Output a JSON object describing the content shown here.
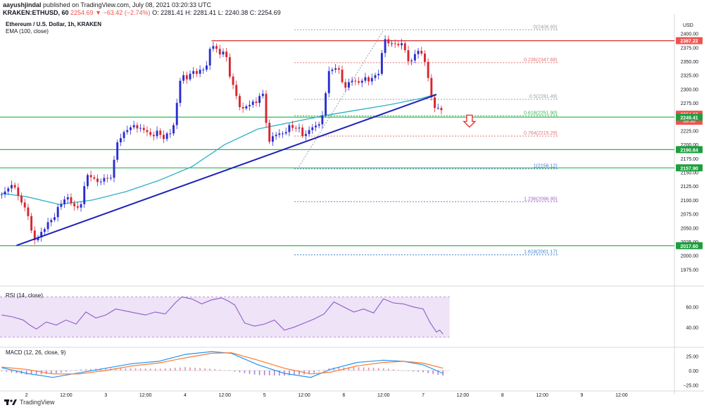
{
  "header": {
    "author": "aayushjindal",
    "published_text": "published on TradingView.com, July 08, 2021 03:20:33 UTC",
    "symbol": "KRAKEN:ETHUSD, 60",
    "price": "2254.69",
    "change": "▼ −63.42 (−2.74%)",
    "o": "O: 2281.41",
    "h": "H: 2281.41",
    "l": "L: 2240.38",
    "c": "C: 2254.69"
  },
  "chart_data": [
    {
      "type": "candlestick",
      "title": "Ethereum / U.S. Dollar, 1h, KRAKEN",
      "indicator_label": "EMA (100, close)",
      "y_unit": "USD",
      "ylim": [
        1950,
        2425
      ],
      "yticks": [
        1975,
        2000,
        2025,
        2050,
        2075,
        2100,
        2125,
        2150,
        2175,
        2200,
        2225,
        2250,
        2275,
        2300,
        2325,
        2350,
        2375,
        2400
      ],
      "x_ticks": [
        "2",
        "12:00",
        "3",
        "12:00",
        "4",
        "12:00",
        "5",
        "12:00",
        "6",
        "12:00",
        "7",
        "12:00",
        "8",
        "12:00",
        "9",
        "12:00"
      ],
      "x_tick_hours": [
        0,
        12,
        24,
        36,
        48,
        60,
        72,
        84,
        96,
        108,
        120,
        132,
        144,
        156,
        168,
        180
      ],
      "x_range_hours": [
        -8,
        196
      ],
      "price_path": [
        [
          -7.5,
          2110
        ],
        [
          -6,
          2118
        ],
        [
          -4,
          2130
        ],
        [
          -2,
          2100
        ],
        [
          0,
          2082
        ],
        [
          1,
          2060
        ],
        [
          2,
          2030
        ],
        [
          3,
          2025
        ],
        [
          4,
          2040
        ],
        [
          6,
          2050
        ],
        [
          7,
          2070
        ],
        [
          8,
          2058
        ],
        [
          9,
          2080
        ],
        [
          10,
          2095
        ],
        [
          11,
          2090
        ],
        [
          12,
          2112
        ],
        [
          13,
          2098
        ],
        [
          14,
          2090
        ],
        [
          16,
          2085
        ],
        [
          17,
          2100
        ],
        [
          18,
          2150
        ],
        [
          19,
          2140
        ],
        [
          20,
          2142
        ],
        [
          21,
          2135
        ],
        [
          22,
          2130
        ],
        [
          24,
          2143
        ],
        [
          25,
          2135
        ],
        [
          26,
          2145
        ],
        [
          27,
          2200
        ],
        [
          28,
          2208
        ],
        [
          29,
          2215
        ],
        [
          30,
          2230
        ],
        [
          31,
          2222
        ],
        [
          32,
          2240
        ],
        [
          33,
          2230
        ],
        [
          34,
          2228
        ],
        [
          35,
          2232
        ],
        [
          36,
          2220
        ],
        [
          37,
          2225
        ],
        [
          38,
          2210
        ],
        [
          40,
          2230
        ],
        [
          41,
          2205
        ],
        [
          43,
          2225
        ],
        [
          44,
          2215
        ],
        [
          45,
          2255
        ],
        [
          46,
          2295
        ],
        [
          47,
          2335
        ],
        [
          48,
          2315
        ],
        [
          49,
          2320
        ],
        [
          50,
          2335
        ],
        [
          52,
          2325
        ],
        [
          53,
          2345
        ],
        [
          54,
          2325
        ],
        [
          55,
          2360
        ],
        [
          56,
          2385
        ],
        [
          57,
          2370
        ],
        [
          58,
          2375
        ],
        [
          59,
          2350
        ],
        [
          60,
          2385
        ],
        [
          61,
          2330
        ],
        [
          62,
          2315
        ],
        [
          63,
          2300
        ],
        [
          64,
          2275
        ],
        [
          65,
          2260
        ],
        [
          66,
          2270
        ],
        [
          67,
          2268
        ],
        [
          68,
          2275
        ],
        [
          69,
          2280
        ],
        [
          70,
          2270
        ],
        [
          71,
          2305
        ],
        [
          72,
          2278
        ],
        [
          73,
          2200
        ],
        [
          74,
          2210
        ],
        [
          75,
          2220
        ],
        [
          76,
          2215
        ],
        [
          77,
          2225
        ],
        [
          78,
          2215
        ],
        [
          79,
          2230
        ],
        [
          80,
          2240
        ],
        [
          81,
          2220
        ],
        [
          82,
          2238
        ],
        [
          84,
          2208
        ],
        [
          85,
          2230
        ],
        [
          86,
          2222
        ],
        [
          87,
          2240
        ],
        [
          88,
          2228
        ],
        [
          89,
          2245
        ],
        [
          90,
          2260
        ],
        [
          91,
          2325
        ],
        [
          92,
          2340
        ],
        [
          93,
          2330
        ],
        [
          94,
          2345
        ],
        [
          95,
          2325
        ],
        [
          96,
          2300
        ],
        [
          97,
          2305
        ],
        [
          98,
          2320
        ],
        [
          99,
          2310
        ],
        [
          100,
          2318
        ],
        [
          101,
          2305
        ],
        [
          102,
          2325
        ],
        [
          104,
          2310
        ],
        [
          105,
          2330
        ],
        [
          106,
          2320
        ],
        [
          107,
          2335
        ],
        [
          108,
          2395
        ],
        [
          109,
          2385
        ],
        [
          110,
          2380
        ],
        [
          111,
          2385
        ],
        [
          112,
          2378
        ],
        [
          113,
          2380
        ],
        [
          114,
          2385
        ],
        [
          115,
          2355
        ],
        [
          116,
          2345
        ],
        [
          117,
          2358
        ],
        [
          118,
          2368
        ],
        [
          119,
          2370
        ],
        [
          120,
          2358
        ],
        [
          121,
          2340
        ],
        [
          122,
          2300
        ],
        [
          123,
          2270
        ],
        [
          124,
          2262
        ],
        [
          125,
          2270
        ],
        [
          126,
          2254
        ]
      ],
      "ema_path": [
        [
          -7.5,
          2112
        ],
        [
          0,
          2106
        ],
        [
          10,
          2092
        ],
        [
          20,
          2100
        ],
        [
          30,
          2115
        ],
        [
          40,
          2135
        ],
        [
          50,
          2160
        ],
        [
          60,
          2200
        ],
        [
          70,
          2228
        ],
        [
          80,
          2240
        ],
        [
          90,
          2252
        ],
        [
          100,
          2262
        ],
        [
          110,
          2272
        ],
        [
          120,
          2284
        ],
        [
          124,
          2291
        ]
      ],
      "trend_line": {
        "from": [
          -3,
          2018
        ],
        "to": [
          124,
          2290
        ]
      },
      "horizontal_levels": [
        2387.22,
        2249.41,
        2190.84,
        2157.9,
        2017.6
      ],
      "fibonacci": {
        "from_time": 81,
        "to_time": 161,
        "levels": [
          {
            "label": "0(2406.85)",
            "price": 2406.85
          },
          {
            "label": "0.236(2347.68)",
            "price": 2347.68
          },
          {
            "label": "0.5(2281.49)",
            "price": 2281.49
          },
          {
            "label": "0.618(2251.90)",
            "price": 2251.9
          },
          {
            "label": "0.764(2215.29)",
            "price": 2215.29
          },
          {
            "label": "1(2156.12)",
            "price": 2156.12
          },
          {
            "label": "1.236(2096.95)",
            "price": 2096.95
          },
          {
            "label": "1.618(2001.17)",
            "price": 2001.17
          }
        ]
      },
      "price_tags": [
        {
          "text": "2387.22",
          "price": 2387.22,
          "color": "#ef5350"
        },
        {
          "text": "2254.69",
          "price": 2254.69,
          "color": "#ef5350",
          "sub": "39:36"
        },
        {
          "text": "2249.41",
          "price": 2249.41,
          "color": "#1e9e3e"
        },
        {
          "text": "2190.84",
          "price": 2190.84,
          "color": "#1e9e3e"
        },
        {
          "text": "2157.90",
          "price": 2157.9,
          "color": "#1e9e3e"
        },
        {
          "text": "2017.60",
          "price": 2017.6,
          "color": "#1e9e3e"
        }
      ],
      "annotation": "down-arrow"
    },
    {
      "type": "line",
      "title": "RSI (14, close)",
      "ylim": [
        22,
        78
      ],
      "yticks": [
        40,
        60
      ],
      "band": [
        30,
        70
      ],
      "values": [
        [
          -7.5,
          52
        ],
        [
          -4,
          50
        ],
        [
          -1,
          47
        ],
        [
          1,
          42
        ],
        [
          3,
          38
        ],
        [
          6,
          45
        ],
        [
          9,
          42
        ],
        [
          12,
          47
        ],
        [
          15,
          43
        ],
        [
          18,
          55
        ],
        [
          21,
          49
        ],
        [
          24,
          52
        ],
        [
          27,
          58
        ],
        [
          30,
          56
        ],
        [
          33,
          54
        ],
        [
          36,
          52
        ],
        [
          39,
          55
        ],
        [
          42,
          53
        ],
        [
          45,
          64
        ],
        [
          47,
          70
        ],
        [
          50,
          68
        ],
        [
          53,
          63
        ],
        [
          56,
          67
        ],
        [
          59,
          69
        ],
        [
          61,
          66
        ],
        [
          63,
          62
        ],
        [
          66,
          44
        ],
        [
          69,
          41
        ],
        [
          72,
          43
        ],
        [
          75,
          47
        ],
        [
          78,
          37
        ],
        [
          81,
          40
        ],
        [
          84,
          44
        ],
        [
          87,
          48
        ],
        [
          90,
          53
        ],
        [
          93,
          65
        ],
        [
          96,
          60
        ],
        [
          99,
          55
        ],
        [
          102,
          58
        ],
        [
          105,
          54
        ],
        [
          108,
          68
        ],
        [
          111,
          64
        ],
        [
          114,
          63
        ],
        [
          117,
          60
        ],
        [
          120,
          58
        ],
        [
          122,
          45
        ],
        [
          124,
          35
        ],
        [
          125,
          37
        ],
        [
          126,
          33
        ]
      ]
    },
    {
      "type": "line",
      "title": "MACD (12, 26, close, 9)",
      "ylim": [
        -32,
        38
      ],
      "yticks": [
        25,
        0,
        -25
      ],
      "macd": [
        [
          -7.5,
          5
        ],
        [
          0,
          -5
        ],
        [
          8,
          -12
        ],
        [
          16,
          -4
        ],
        [
          24,
          4
        ],
        [
          32,
          12
        ],
        [
          40,
          16
        ],
        [
          48,
          28
        ],
        [
          56,
          33
        ],
        [
          62,
          30
        ],
        [
          70,
          10
        ],
        [
          78,
          -5
        ],
        [
          86,
          -12
        ],
        [
          92,
          2
        ],
        [
          100,
          14
        ],
        [
          108,
          18
        ],
        [
          114,
          16
        ],
        [
          120,
          10
        ],
        [
          126,
          -5
        ]
      ],
      "signal": [
        [
          -7.5,
          6
        ],
        [
          0,
          2
        ],
        [
          8,
          -6
        ],
        [
          16,
          -6
        ],
        [
          24,
          0
        ],
        [
          32,
          8
        ],
        [
          40,
          13
        ],
        [
          48,
          22
        ],
        [
          56,
          30
        ],
        [
          62,
          31
        ],
        [
          70,
          18
        ],
        [
          78,
          4
        ],
        [
          86,
          -6
        ],
        [
          92,
          -3
        ],
        [
          100,
          8
        ],
        [
          108,
          14
        ],
        [
          114,
          16
        ],
        [
          120,
          13
        ],
        [
          126,
          4
        ]
      ]
    }
  ],
  "footer": {
    "brand": "TradingView"
  },
  "colors": {
    "up": "#26a69a",
    "down": "#ef5350",
    "candle_up": "#2a2ed0",
    "candle_down": "#d8262d",
    "ema": "#2eb0c6",
    "trend": "#1f22b8",
    "support": "#35b452",
    "resistance": "#d82b2b",
    "fib_grey": "#9aa0a6",
    "fib_red": "#e57373",
    "fib_purple": "#9c66c7",
    "fib_blue": "#3f7fd6",
    "rsi": "#8e5cc9",
    "rsi_band": "#efe3f7",
    "macd": "#2196f3",
    "signal": "#ff7a2d"
  }
}
